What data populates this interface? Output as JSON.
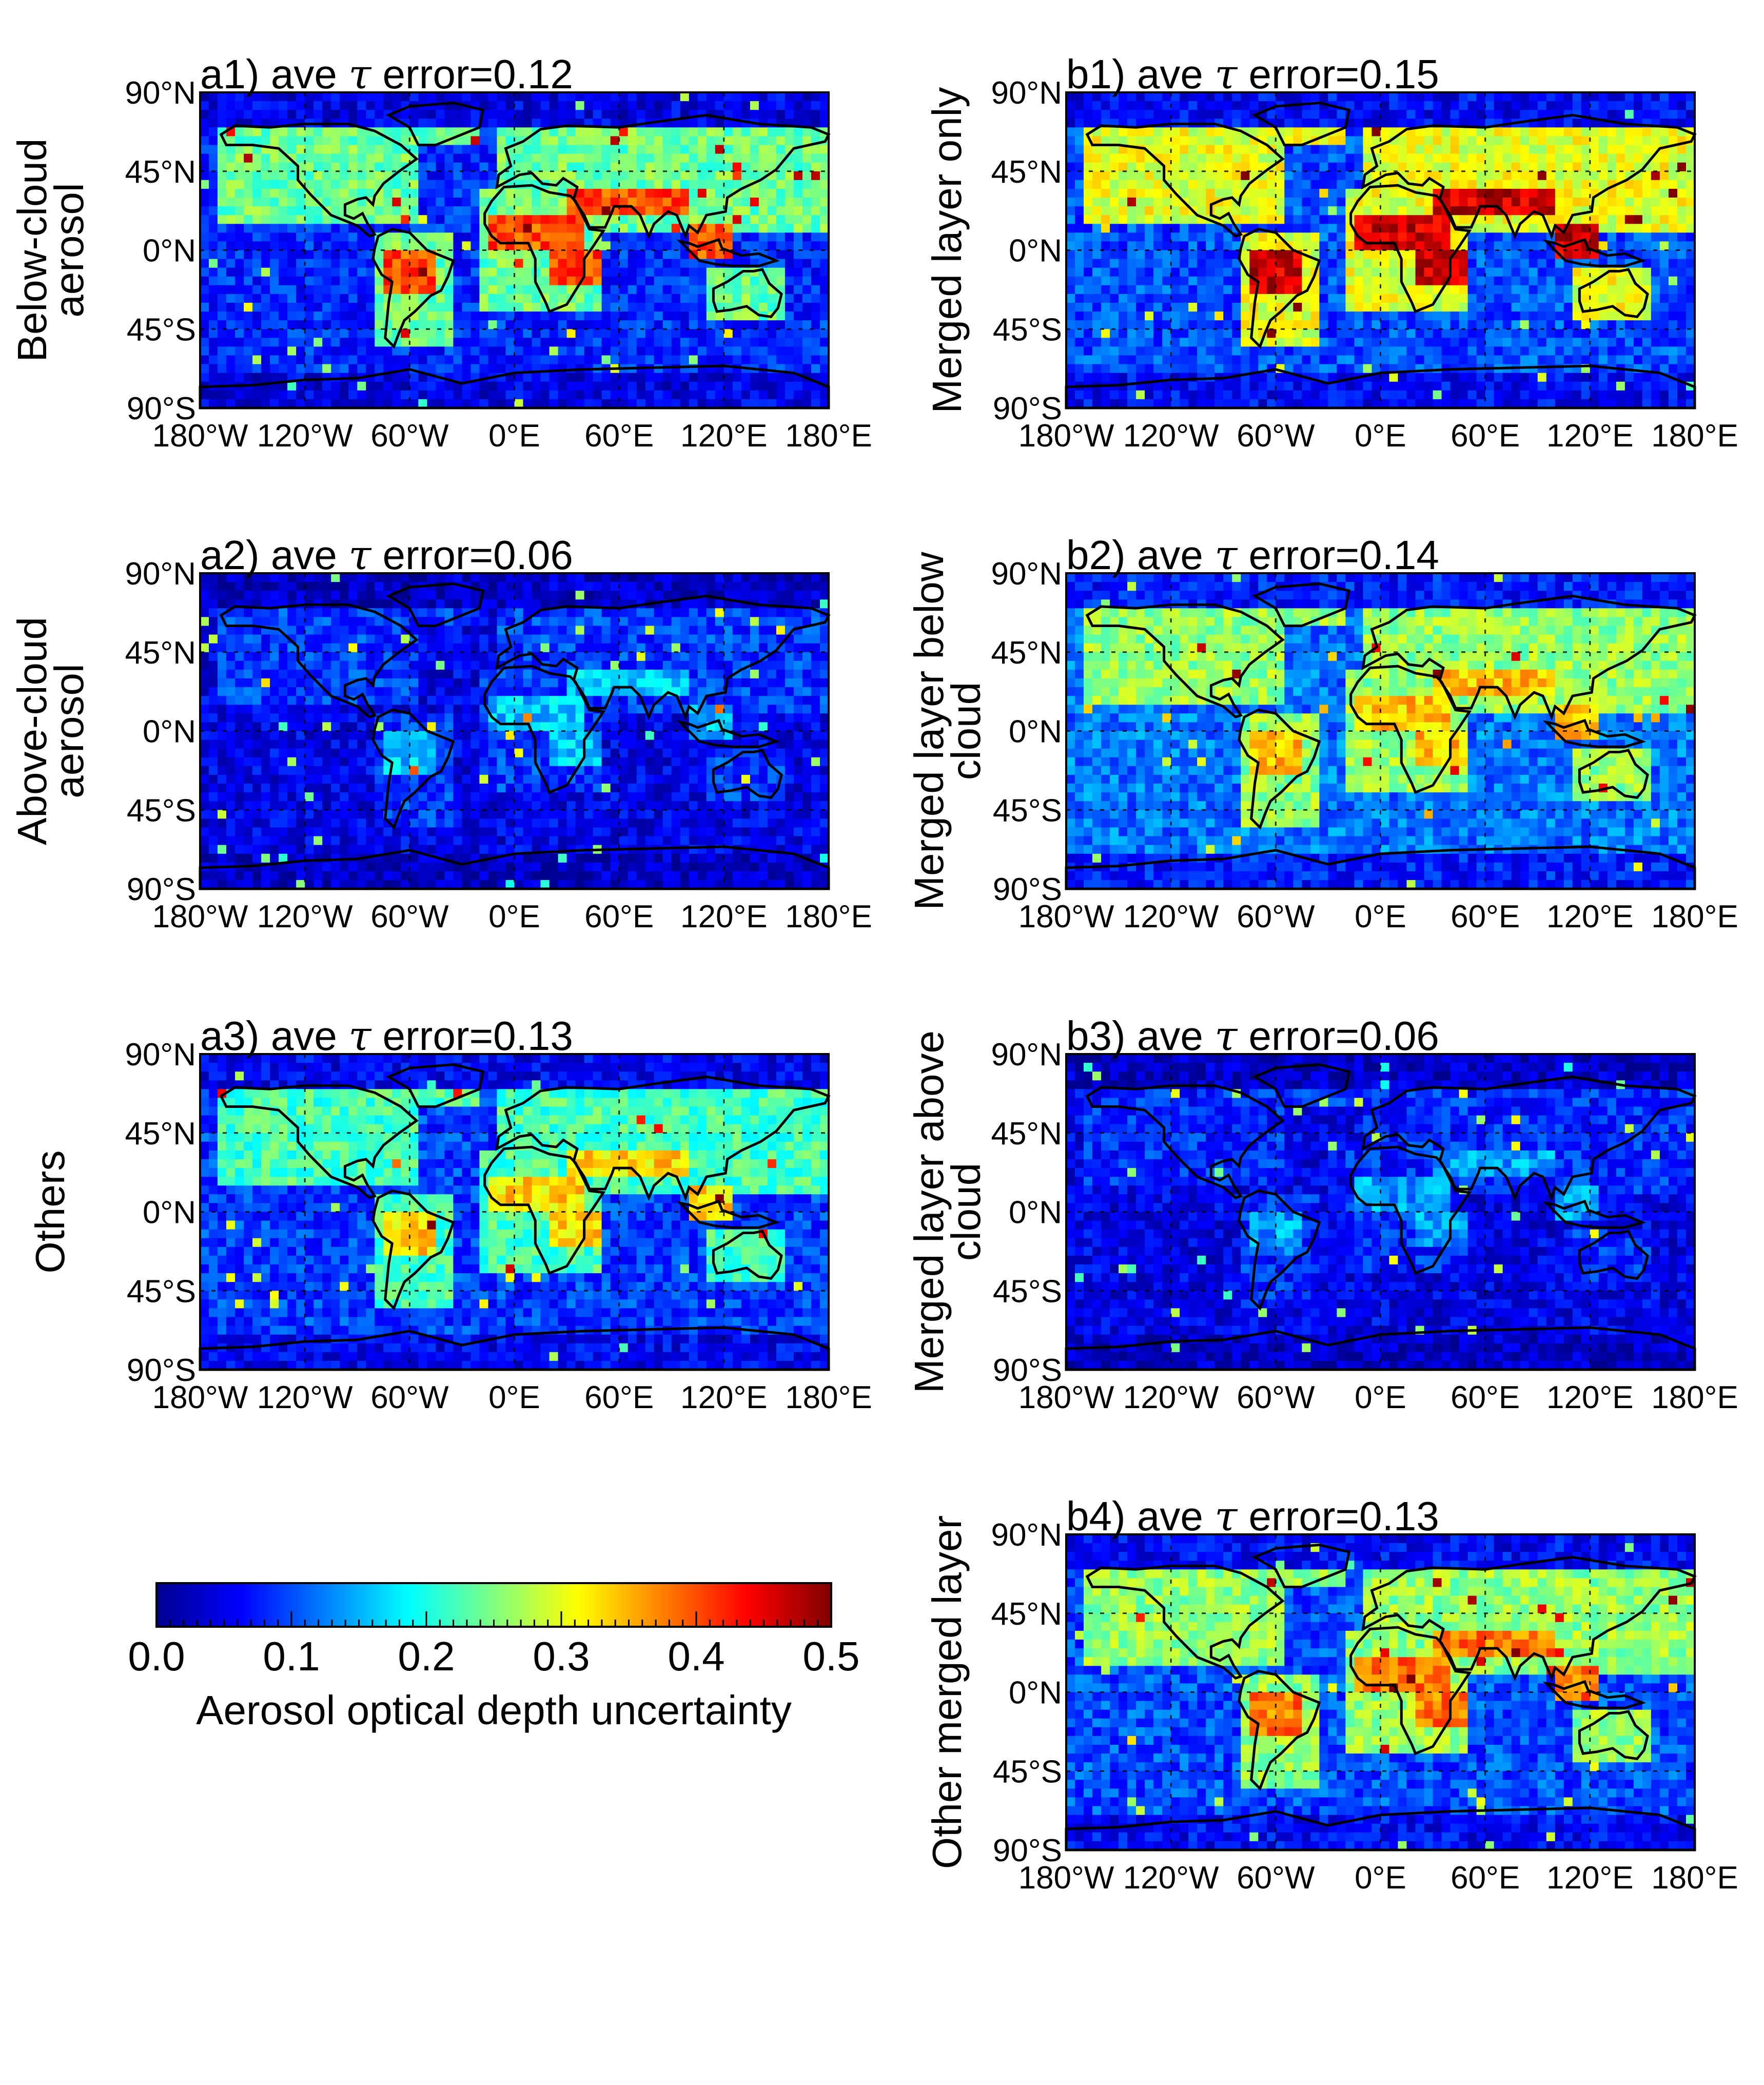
{
  "chart_data": {
    "type": "heatmap",
    "colorbar": {
      "label": "Aerosol optical depth uncertainty",
      "range": [
        0.0,
        0.5
      ],
      "ticks": [
        "0.0",
        "0.1",
        "0.2",
        "0.3",
        "0.4",
        "0.5"
      ],
      "colormap": "jet",
      "colors": [
        "#00008f",
        "#0000ff",
        "#00ffff",
        "#ffff00",
        "#ff0000",
        "#800000"
      ]
    },
    "axes": {
      "lat_ticks": [
        "90°N",
        "45°N",
        "0°N",
        "45°S",
        "90°S"
      ],
      "lon_ticks": [
        "180°W",
        "120°W",
        "60°W",
        "0°E",
        "60°E",
        "120°E",
        "180°E"
      ],
      "xlim": [
        -180,
        180
      ],
      "ylim": [
        -90,
        90
      ],
      "grid": "dotted"
    },
    "panels": [
      {
        "id": "a1",
        "side_label": [
          "Below-cloud",
          "aerosol"
        ],
        "tau_error": 0.12,
        "title_prefix": "a1) ave",
        "symbol": "τ",
        "title_suffix": "error=0.12",
        "intensity": {
          "background": 0.08,
          "land": 0.24,
          "hotspot": 0.4
        }
      },
      {
        "id": "a2",
        "side_label": [
          "Above-cloud",
          "aerosol"
        ],
        "tau_error": 0.06,
        "title_prefix": "a2) ave",
        "symbol": "τ",
        "title_suffix": "error=0.06",
        "intensity": {
          "background": 0.05,
          "land": 0.09,
          "hotspot": 0.16
        }
      },
      {
        "id": "a3",
        "side_label": [
          "Others"
        ],
        "tau_error": 0.13,
        "title_prefix": "a3) ave",
        "symbol": "τ",
        "title_suffix": "error=0.13",
        "intensity": {
          "background": 0.09,
          "land": 0.22,
          "hotspot": 0.33
        }
      },
      {
        "id": "b1",
        "side_label": [
          "Merged layer only"
        ],
        "tau_error": 0.15,
        "title_prefix": "b1) ave",
        "symbol": "τ",
        "title_suffix": "error=0.15",
        "intensity": {
          "background": 0.1,
          "land": 0.3,
          "hotspot": 0.46
        }
      },
      {
        "id": "b2",
        "side_label": [
          "Merged layer below",
          "cloud"
        ],
        "tau_error": 0.14,
        "title_prefix": "b2) ave",
        "symbol": "τ",
        "title_suffix": "error=0.14",
        "intensity": {
          "background": 0.12,
          "land": 0.26,
          "hotspot": 0.34
        }
      },
      {
        "id": "b3",
        "side_label": [
          "Merged layer above",
          "cloud"
        ],
        "tau_error": 0.06,
        "title_prefix": "b3) ave",
        "symbol": "τ",
        "title_suffix": "error=0.06",
        "intensity": {
          "background": 0.05,
          "land": 0.08,
          "hotspot": 0.14
        }
      },
      {
        "id": "b4",
        "side_label": [
          "Other merged layer"
        ],
        "tau_error": 0.13,
        "title_prefix": "b4) ave",
        "symbol": "τ",
        "title_suffix": "error=0.13",
        "intensity": {
          "background": 0.1,
          "land": 0.26,
          "hotspot": 0.38
        }
      }
    ]
  }
}
